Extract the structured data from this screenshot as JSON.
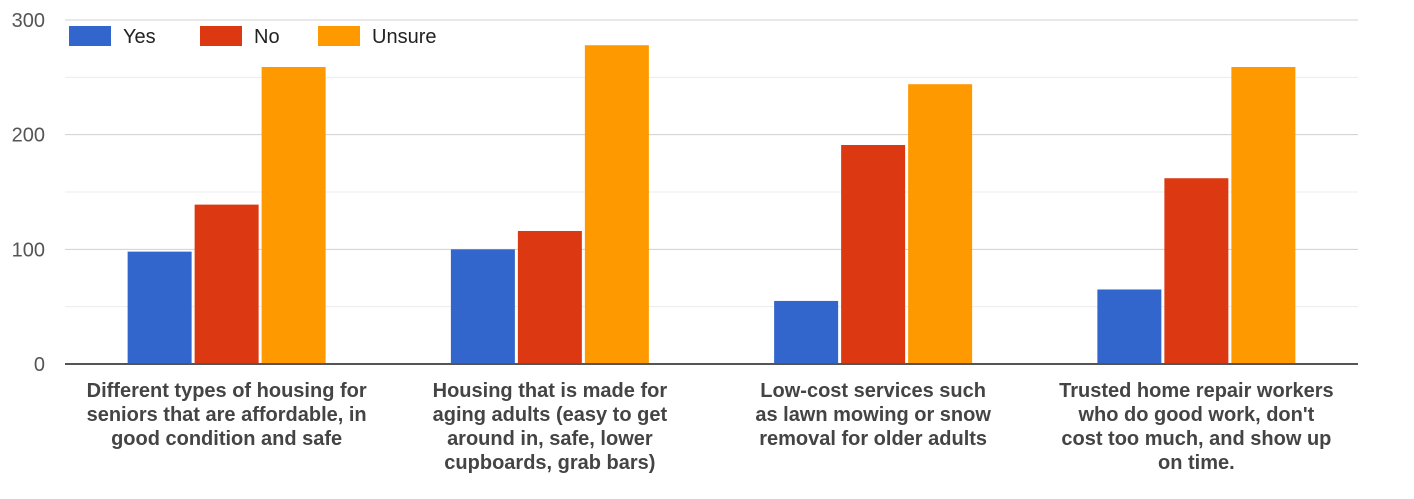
{
  "chart_data": {
    "type": "bar",
    "title": "",
    "xlabel": "",
    "ylabel": "",
    "ylim": [
      0,
      300
    ],
    "yticks": [
      0,
      100,
      200,
      300
    ],
    "grid": true,
    "legend_position": "top-left",
    "categories": [
      [
        "Different types of housing for",
        "seniors that are affordable, in",
        "good condition and safe"
      ],
      [
        "Housing that is made for",
        "aging adults (easy to get",
        "around in, safe, lower",
        "cupboards, grab bars)"
      ],
      [
        "Low-cost services such",
        "as lawn mowing or snow",
        "removal for older adults"
      ],
      [
        "Trusted home repair workers",
        "who do good work, don't",
        "cost too much, and show up",
        "on time."
      ]
    ],
    "series": [
      {
        "name": "Yes",
        "color": "#3366cc",
        "values": [
          98,
          100,
          55,
          65
        ]
      },
      {
        "name": "No",
        "color": "#dc3912",
        "values": [
          139,
          116,
          191,
          162
        ]
      },
      {
        "name": "Unsure",
        "color": "#ff9900",
        "values": [
          259,
          278,
          244,
          259
        ]
      }
    ]
  }
}
